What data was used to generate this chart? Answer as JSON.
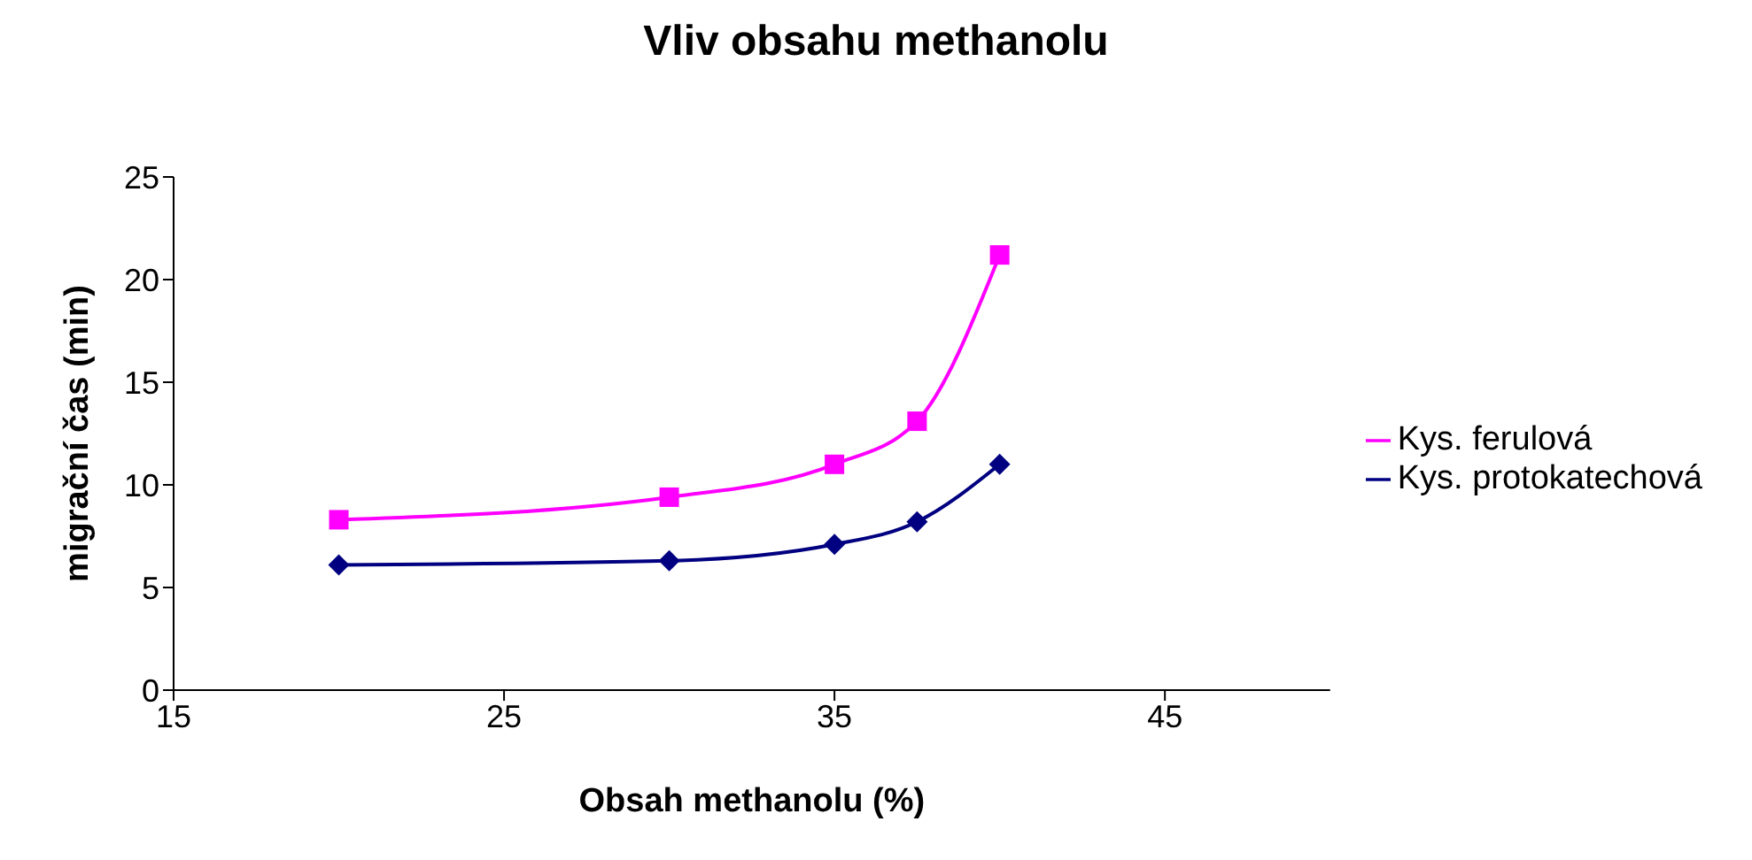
{
  "chart_data": {
    "type": "line",
    "title": "Vliv obsahu methanolu",
    "xlabel": "Obsah methanolu (%)",
    "ylabel": "migrační čas (min)",
    "x": [
      20,
      30,
      35,
      37.5,
      40
    ],
    "series": [
      {
        "name": "Kys. protokatechová",
        "color": "#000080",
        "marker": "diamond",
        "values": [
          6.1,
          6.3,
          7.1,
          8.2,
          11.0
        ]
      },
      {
        "name": "Kys. ferulová",
        "color": "#ff00ff",
        "marker": "square",
        "values": [
          8.3,
          9.4,
          11.0,
          13.1,
          21.2
        ]
      }
    ],
    "xlim": [
      15,
      50
    ],
    "xticks": [
      15,
      25,
      35,
      45
    ],
    "ylim": [
      0,
      25
    ],
    "yticks": [
      0,
      5,
      10,
      15,
      20,
      25
    ],
    "grid": false,
    "legend": "right"
  }
}
